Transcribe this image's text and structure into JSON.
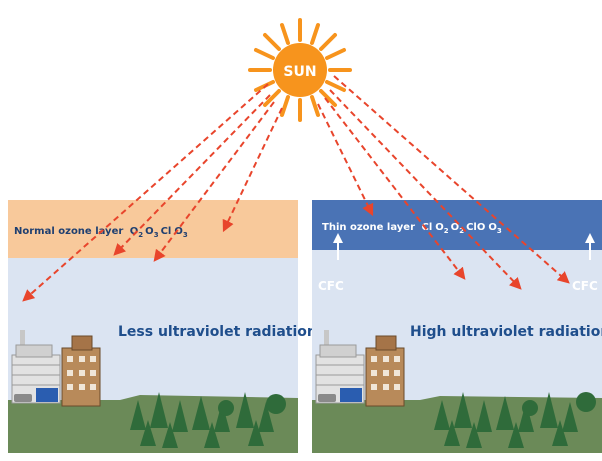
{
  "sun": {
    "label": "SUN"
  },
  "left_panel": {
    "layer_text": "Normal ozone layer",
    "molecules": [
      {
        "sym": "O",
        "sub": "2"
      },
      {
        "sym": "O",
        "sub": "3"
      },
      {
        "sym": "Cl",
        "sub": ""
      },
      {
        "sym": "O",
        "sub": "3"
      }
    ],
    "caption": "Less ultraviolet radiation"
  },
  "right_panel": {
    "layer_text": "Thin ozone layer",
    "molecules": [
      {
        "sym": "Cl",
        "sub": ""
      },
      {
        "sym": "O",
        "sub": "2"
      },
      {
        "sym": "O",
        "sub": "2"
      },
      {
        "sym": "ClO",
        "sub": ""
      },
      {
        "sym": "O",
        "sub": "3"
      }
    ],
    "caption": "High ultraviolet radiation",
    "cfc_left": "CFC",
    "cfc_right": "CFC"
  },
  "colors": {
    "sun": "#f7941d",
    "rays": "#e8452c",
    "normal_layer": "#f8c99b",
    "thin_layer": "#4a73b5",
    "sky": "#dbe4f2",
    "ground": "#6b8a58",
    "caption": "#1f4e8c"
  }
}
